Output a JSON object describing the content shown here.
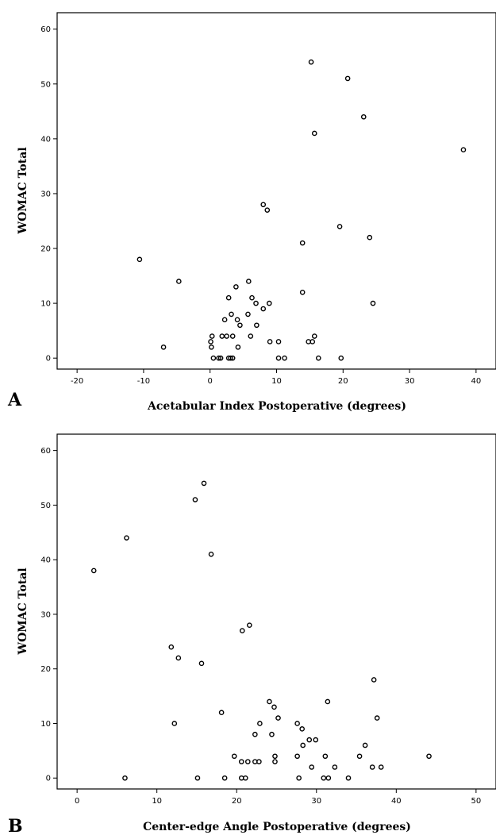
{
  "chart_data": [
    {
      "type": "scatter",
      "panel_label": "A",
      "xlabel": "Acetabular Index Postoperative (degrees)",
      "ylabel": "WOMAC Total",
      "xlim": [
        -23,
        43
      ],
      "ylim": [
        -2,
        63
      ],
      "xticks": [
        -20,
        -10,
        0,
        10,
        20,
        30,
        40
      ],
      "yticks": [
        0,
        10,
        20,
        30,
        40,
        50,
        60
      ],
      "grid": false,
      "points": [
        {
          "x": 15.2,
          "y": 54
        },
        {
          "x": 20.7,
          "y": 51
        },
        {
          "x": 23.1,
          "y": 44
        },
        {
          "x": 15.7,
          "y": 41
        },
        {
          "x": 38.1,
          "y": 38
        },
        {
          "x": 8.0,
          "y": 28
        },
        {
          "x": 8.6,
          "y": 27
        },
        {
          "x": 19.5,
          "y": 24
        },
        {
          "x": 24.0,
          "y": 22
        },
        {
          "x": 13.9,
          "y": 21
        },
        {
          "x": -10.6,
          "y": 18
        },
        {
          "x": -4.7,
          "y": 14
        },
        {
          "x": 5.8,
          "y": 14
        },
        {
          "x": 3.9,
          "y": 13
        },
        {
          "x": 13.9,
          "y": 12
        },
        {
          "x": 2.8,
          "y": 11
        },
        {
          "x": 6.3,
          "y": 11
        },
        {
          "x": 6.9,
          "y": 10
        },
        {
          "x": 8.9,
          "y": 10
        },
        {
          "x": 24.5,
          "y": 10
        },
        {
          "x": 8.0,
          "y": 9
        },
        {
          "x": 3.2,
          "y": 8
        },
        {
          "x": 5.7,
          "y": 8
        },
        {
          "x": 2.2,
          "y": 7
        },
        {
          "x": 4.1,
          "y": 7
        },
        {
          "x": 4.5,
          "y": 6
        },
        {
          "x": 7.0,
          "y": 6
        },
        {
          "x": 0.3,
          "y": 4
        },
        {
          "x": 1.8,
          "y": 4
        },
        {
          "x": 2.5,
          "y": 4
        },
        {
          "x": 3.4,
          "y": 4
        },
        {
          "x": 6.1,
          "y": 4
        },
        {
          "x": 15.7,
          "y": 4
        },
        {
          "x": 0.1,
          "y": 3
        },
        {
          "x": 9.0,
          "y": 3
        },
        {
          "x": 10.3,
          "y": 3
        },
        {
          "x": 14.8,
          "y": 3
        },
        {
          "x": 15.4,
          "y": 3
        },
        {
          "x": -7.0,
          "y": 2
        },
        {
          "x": 0.2,
          "y": 2
        },
        {
          "x": 4.2,
          "y": 2
        },
        {
          "x": 0.5,
          "y": 0
        },
        {
          "x": 1.3,
          "y": 0
        },
        {
          "x": 1.6,
          "y": 0
        },
        {
          "x": 2.8,
          "y": 0
        },
        {
          "x": 3.1,
          "y": 0
        },
        {
          "x": 3.4,
          "y": 0
        },
        {
          "x": 10.3,
          "y": 0
        },
        {
          "x": 11.2,
          "y": 0
        },
        {
          "x": 16.3,
          "y": 0
        },
        {
          "x": 19.7,
          "y": 0
        }
      ]
    },
    {
      "type": "scatter",
      "panel_label": "B",
      "xlabel": "Center-edge Angle Postoperative (degrees)",
      "ylabel": "WOMAC Total",
      "xlim": [
        -2.5,
        52.5
      ],
      "ylim": [
        -2,
        63
      ],
      "xticks": [
        0,
        10,
        20,
        30,
        40,
        50
      ],
      "yticks": [
        0,
        10,
        20,
        30,
        40,
        50,
        60
      ],
      "grid": false,
      "points": [
        {
          "x": 15.9,
          "y": 54
        },
        {
          "x": 14.8,
          "y": 51
        },
        {
          "x": 6.2,
          "y": 44
        },
        {
          "x": 16.8,
          "y": 41
        },
        {
          "x": 2.1,
          "y": 38
        },
        {
          "x": 21.6,
          "y": 28
        },
        {
          "x": 20.7,
          "y": 27
        },
        {
          "x": 11.8,
          "y": 24
        },
        {
          "x": 12.7,
          "y": 22
        },
        {
          "x": 15.6,
          "y": 21
        },
        {
          "x": 37.2,
          "y": 18
        },
        {
          "x": 24.1,
          "y": 14
        },
        {
          "x": 31.4,
          "y": 14
        },
        {
          "x": 24.7,
          "y": 13
        },
        {
          "x": 18.1,
          "y": 12
        },
        {
          "x": 25.2,
          "y": 11
        },
        {
          "x": 37.6,
          "y": 11
        },
        {
          "x": 12.2,
          "y": 10
        },
        {
          "x": 22.9,
          "y": 10
        },
        {
          "x": 27.6,
          "y": 10
        },
        {
          "x": 28.2,
          "y": 9
        },
        {
          "x": 22.3,
          "y": 8
        },
        {
          "x": 24.4,
          "y": 8
        },
        {
          "x": 29.1,
          "y": 7
        },
        {
          "x": 29.9,
          "y": 7
        },
        {
          "x": 28.3,
          "y": 6
        },
        {
          "x": 36.1,
          "y": 6
        },
        {
          "x": 19.7,
          "y": 4
        },
        {
          "x": 24.8,
          "y": 4
        },
        {
          "x": 27.6,
          "y": 4
        },
        {
          "x": 31.1,
          "y": 4
        },
        {
          "x": 35.4,
          "y": 4
        },
        {
          "x": 44.1,
          "y": 4
        },
        {
          "x": 20.6,
          "y": 3
        },
        {
          "x": 21.4,
          "y": 3
        },
        {
          "x": 22.3,
          "y": 3
        },
        {
          "x": 22.8,
          "y": 3
        },
        {
          "x": 24.8,
          "y": 3
        },
        {
          "x": 29.4,
          "y": 2
        },
        {
          "x": 32.3,
          "y": 2
        },
        {
          "x": 37.0,
          "y": 2
        },
        {
          "x": 38.1,
          "y": 2
        },
        {
          "x": 6.0,
          "y": 0
        },
        {
          "x": 15.1,
          "y": 0
        },
        {
          "x": 18.5,
          "y": 0
        },
        {
          "x": 20.6,
          "y": 0
        },
        {
          "x": 21.1,
          "y": 0
        },
        {
          "x": 27.8,
          "y": 0
        },
        {
          "x": 30.9,
          "y": 0
        },
        {
          "x": 31.5,
          "y": 0
        },
        {
          "x": 34.0,
          "y": 0
        }
      ]
    }
  ]
}
